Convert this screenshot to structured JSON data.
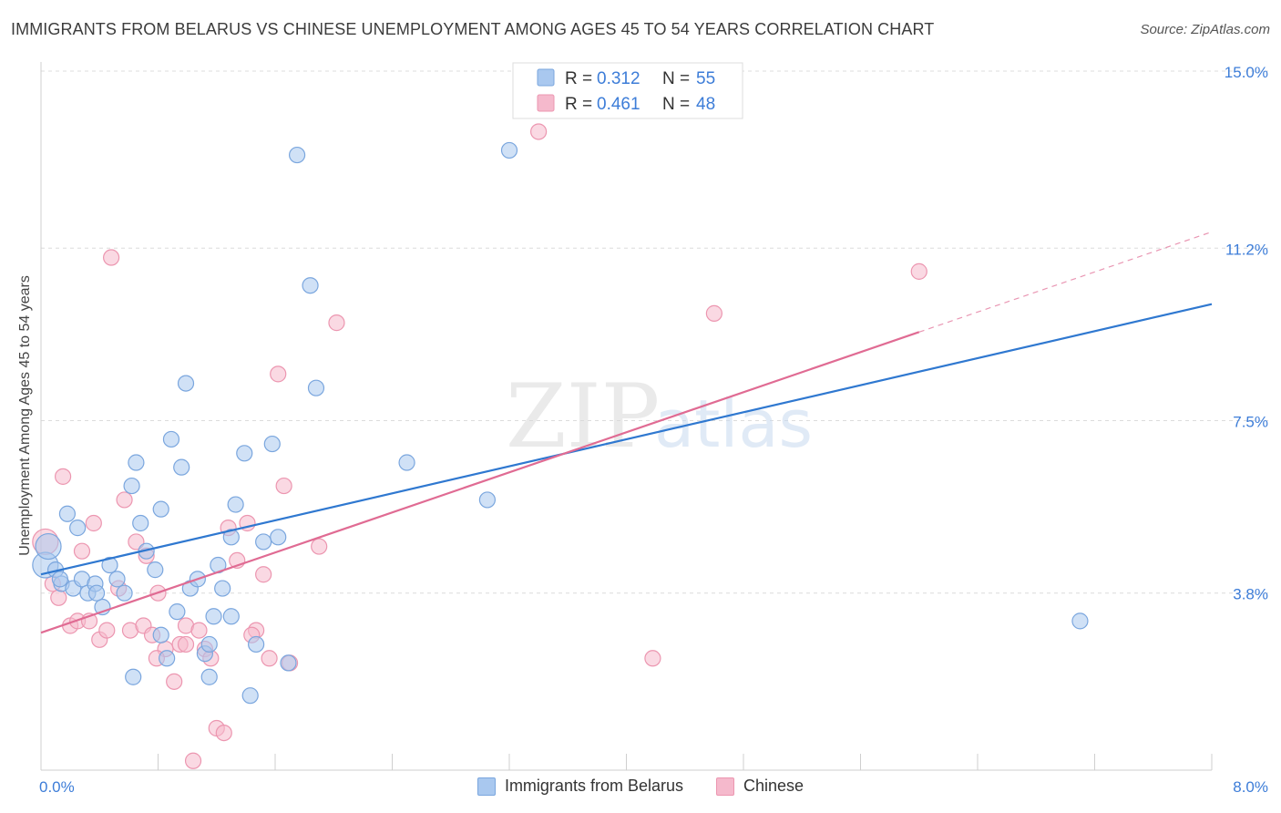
{
  "header": {
    "title": "IMMIGRANTS FROM BELARUS VS CHINESE UNEMPLOYMENT AMONG AGES 45 TO 54 YEARS CORRELATION CHART",
    "source": "Source: ZipAtlas.com"
  },
  "watermark": {
    "zip": "ZIP",
    "atlas": "atlas"
  },
  "legend": {
    "rows": [
      {
        "r_label": "R =",
        "r_value": "0.312",
        "n_label": "N =",
        "n_value": "55"
      },
      {
        "r_label": "R =",
        "r_value": "0.461",
        "n_label": "N =",
        "n_value": "48"
      }
    ]
  },
  "colors": {
    "blue_fill": "#a9c8ef",
    "blue_stroke": "#7aa6de",
    "blue_line": "#2f78d0",
    "pink_fill": "#f5b9cc",
    "pink_stroke": "#ec96b0",
    "pink_line": "#e06b93",
    "value_text": "#3d7dd8",
    "grid": "#dcdcdc"
  },
  "chart_data": {
    "type": "scatter",
    "title": "IMMIGRANTS FROM BELARUS VS CHINESE UNEMPLOYMENT AMONG AGES 45 TO 54 YEARS CORRELATION CHART",
    "xlabel": "",
    "ylabel": "Unemployment Among Ages 45 to 54 years",
    "xlim": [
      0,
      8.0
    ],
    "ylim": [
      0,
      15.0
    ],
    "x_tick_labels": [
      "0.0%",
      "8.0%"
    ],
    "y_tick_values": [
      3.8,
      7.5,
      11.2,
      15.0
    ],
    "y_tick_labels": [
      "3.8%",
      "7.5%",
      "11.2%",
      "15.0%"
    ],
    "grid": "horizontal dashed",
    "legend_position": "top-center",
    "series": [
      {
        "name": "Immigrants from Belarus",
        "r": 0.312,
        "n": 55,
        "trend": {
          "x0": 0.0,
          "y0": 4.2,
          "x1": 8.0,
          "y1": 10.0
        },
        "points": [
          {
            "x": 0.03,
            "y": 4.4,
            "big": true
          },
          {
            "x": 0.05,
            "y": 4.8,
            "big": true
          },
          {
            "x": 0.1,
            "y": 4.3
          },
          {
            "x": 0.14,
            "y": 4.0
          },
          {
            "x": 0.18,
            "y": 5.5
          },
          {
            "x": 0.22,
            "y": 3.9
          },
          {
            "x": 0.25,
            "y": 5.2
          },
          {
            "x": 0.28,
            "y": 4.1
          },
          {
            "x": 0.32,
            "y": 3.8
          },
          {
            "x": 0.37,
            "y": 4.0
          },
          {
            "x": 0.42,
            "y": 3.5
          },
          {
            "x": 0.47,
            "y": 4.4
          },
          {
            "x": 0.52,
            "y": 4.1
          },
          {
            "x": 0.57,
            "y": 3.8
          },
          {
            "x": 0.62,
            "y": 6.1
          },
          {
            "x": 0.65,
            "y": 6.6
          },
          {
            "x": 0.68,
            "y": 5.3
          },
          {
            "x": 0.72,
            "y": 4.7
          },
          {
            "x": 0.78,
            "y": 4.3
          },
          {
            "x": 0.82,
            "y": 5.6
          },
          {
            "x": 0.86,
            "y": 2.4
          },
          {
            "x": 0.89,
            "y": 7.1
          },
          {
            "x": 0.93,
            "y": 3.4
          },
          {
            "x": 0.96,
            "y": 6.5
          },
          {
            "x": 0.99,
            "y": 8.3
          },
          {
            "x": 1.02,
            "y": 3.9
          },
          {
            "x": 1.07,
            "y": 4.1
          },
          {
            "x": 1.12,
            "y": 2.5
          },
          {
            "x": 1.15,
            "y": 2.7
          },
          {
            "x": 1.18,
            "y": 3.3
          },
          {
            "x": 1.21,
            "y": 4.4
          },
          {
            "x": 1.24,
            "y": 3.9
          },
          {
            "x": 1.3,
            "y": 5.0
          },
          {
            "x": 1.33,
            "y": 5.7
          },
          {
            "x": 1.39,
            "y": 6.8
          },
          {
            "x": 1.43,
            "y": 1.6
          },
          {
            "x": 1.47,
            "y": 2.7
          },
          {
            "x": 1.58,
            "y": 7.0
          },
          {
            "x": 1.62,
            "y": 5.0
          },
          {
            "x": 1.69,
            "y": 2.3
          },
          {
            "x": 1.88,
            "y": 8.2
          },
          {
            "x": 1.84,
            "y": 10.4
          },
          {
            "x": 1.75,
            "y": 13.2
          },
          {
            "x": 2.5,
            "y": 6.6
          },
          {
            "x": 3.05,
            "y": 5.8
          },
          {
            "x": 3.2,
            "y": 13.3
          },
          {
            "x": 3.35,
            "y": 14.9,
            "big": true
          },
          {
            "x": 7.1,
            "y": 3.2
          },
          {
            "x": 0.63,
            "y": 2.0
          },
          {
            "x": 1.15,
            "y": 2.0
          },
          {
            "x": 0.82,
            "y": 2.9
          },
          {
            "x": 1.3,
            "y": 3.3
          },
          {
            "x": 0.38,
            "y": 3.8
          },
          {
            "x": 0.13,
            "y": 4.1
          },
          {
            "x": 1.52,
            "y": 4.9
          }
        ]
      },
      {
        "name": "Chinese",
        "r": 0.461,
        "n": 48,
        "trend": {
          "x0": 0.0,
          "y0": 2.95,
          "x1": 6.0,
          "y1": 9.4,
          "dash_to_x": 8.0,
          "dash_to_y": 11.55
        },
        "points": [
          {
            "x": 0.03,
            "y": 4.9,
            "big": true
          },
          {
            "x": 0.08,
            "y": 4.0
          },
          {
            "x": 0.12,
            "y": 3.7
          },
          {
            "x": 0.15,
            "y": 6.3
          },
          {
            "x": 0.2,
            "y": 3.1
          },
          {
            "x": 0.25,
            "y": 3.2
          },
          {
            "x": 0.28,
            "y": 4.7
          },
          {
            "x": 0.33,
            "y": 3.2
          },
          {
            "x": 0.36,
            "y": 5.3
          },
          {
            "x": 0.4,
            "y": 2.8
          },
          {
            "x": 0.45,
            "y": 3.0
          },
          {
            "x": 0.48,
            "y": 11.0
          },
          {
            "x": 0.53,
            "y": 3.9
          },
          {
            "x": 0.57,
            "y": 5.8
          },
          {
            "x": 0.61,
            "y": 3.0
          },
          {
            "x": 0.65,
            "y": 4.9
          },
          {
            "x": 0.7,
            "y": 3.1
          },
          {
            "x": 0.72,
            "y": 4.6
          },
          {
            "x": 0.76,
            "y": 2.9
          },
          {
            "x": 0.8,
            "y": 3.8
          },
          {
            "x": 0.85,
            "y": 2.6
          },
          {
            "x": 0.91,
            "y": 1.9
          },
          {
            "x": 0.95,
            "y": 2.7
          },
          {
            "x": 0.99,
            "y": 3.1
          },
          {
            "x": 1.04,
            "y": 0.2
          },
          {
            "x": 1.08,
            "y": 3.0
          },
          {
            "x": 1.12,
            "y": 2.6
          },
          {
            "x": 1.16,
            "y": 2.4
          },
          {
            "x": 1.2,
            "y": 0.9
          },
          {
            "x": 1.25,
            "y": 0.8
          },
          {
            "x": 1.28,
            "y": 5.2
          },
          {
            "x": 1.34,
            "y": 4.5
          },
          {
            "x": 1.41,
            "y": 5.3
          },
          {
            "x": 1.47,
            "y": 3.0
          },
          {
            "x": 1.52,
            "y": 4.2
          },
          {
            "x": 1.56,
            "y": 2.4
          },
          {
            "x": 1.62,
            "y": 8.5
          },
          {
            "x": 1.66,
            "y": 6.1
          },
          {
            "x": 1.7,
            "y": 2.3
          },
          {
            "x": 1.9,
            "y": 4.8
          },
          {
            "x": 2.02,
            "y": 9.6
          },
          {
            "x": 3.4,
            "y": 13.7
          },
          {
            "x": 4.18,
            "y": 2.4
          },
          {
            "x": 4.6,
            "y": 9.8
          },
          {
            "x": 6.0,
            "y": 10.7
          },
          {
            "x": 0.79,
            "y": 2.4
          },
          {
            "x": 1.44,
            "y": 2.9
          },
          {
            "x": 0.99,
            "y": 2.7
          }
        ]
      }
    ]
  },
  "bottom_legend": [
    {
      "label": "Immigrants from Belarus"
    },
    {
      "label": "Chinese"
    }
  ]
}
